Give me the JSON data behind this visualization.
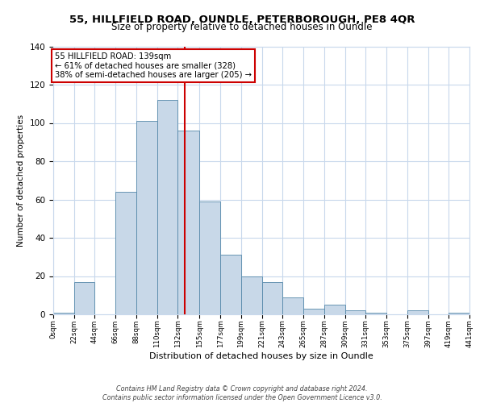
{
  "title": "55, HILLFIELD ROAD, OUNDLE, PETERBOROUGH, PE8 4QR",
  "subtitle": "Size of property relative to detached houses in Oundle",
  "xlabel": "Distribution of detached houses by size in Oundle",
  "ylabel": "Number of detached properties",
  "bar_color": "#c8d8e8",
  "bar_edge_color": "#5588aa",
  "bin_edges": [
    0,
    22,
    44,
    66,
    88,
    110,
    132,
    155,
    177,
    199,
    221,
    243,
    265,
    287,
    309,
    331,
    353,
    375,
    397,
    419,
    441
  ],
  "bar_heights": [
    1,
    17,
    0,
    64,
    101,
    112,
    96,
    59,
    31,
    20,
    17,
    9,
    3,
    5,
    2,
    1,
    0,
    2,
    0,
    1
  ],
  "tick_labels": [
    "0sqm",
    "22sqm",
    "44sqm",
    "66sqm",
    "88sqm",
    "110sqm",
    "132sqm",
    "155sqm",
    "177sqm",
    "199sqm",
    "221sqm",
    "243sqm",
    "265sqm",
    "287sqm",
    "309sqm",
    "331sqm",
    "353sqm",
    "375sqm",
    "397sqm",
    "419sqm",
    "441sqm"
  ],
  "vline_x": 139,
  "vline_color": "#cc0000",
  "annotation_title": "55 HILLFIELD ROAD: 139sqm",
  "annotation_line1": "← 61% of detached houses are smaller (328)",
  "annotation_line2": "38% of semi-detached houses are larger (205) →",
  "annotation_box_color": "#ffffff",
  "annotation_box_edge": "#cc0000",
  "ylim": [
    0,
    140
  ],
  "yticks": [
    0,
    20,
    40,
    60,
    80,
    100,
    120,
    140
  ],
  "footer1": "Contains HM Land Registry data © Crown copyright and database right 2024.",
  "footer2": "Contains public sector information licensed under the Open Government Licence v3.0.",
  "background_color": "#ffffff",
  "grid_color": "#c8d8ec"
}
